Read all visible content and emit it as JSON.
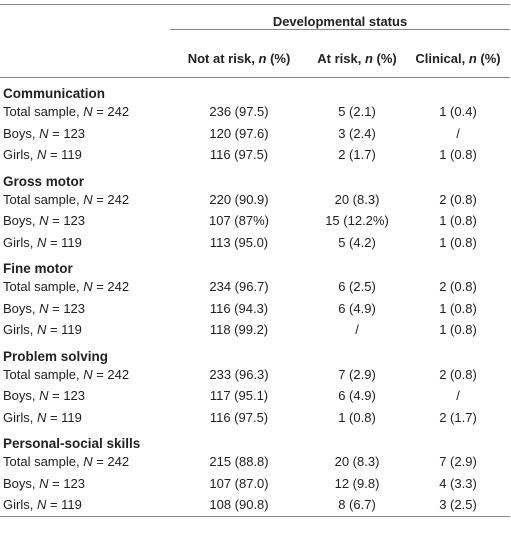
{
  "table": {
    "super_header": "Developmental status",
    "columns": [
      "Not at risk, n (%)",
      "At risk, n (%)",
      "Clinical, n (%)"
    ],
    "sections": [
      {
        "title": "Communication",
        "rows": [
          {
            "label": "Total sample, N = 242",
            "values": [
              "236 (97.5)",
              "5 (2.1)",
              "1 (0.4)"
            ]
          },
          {
            "label": "Boys, N = 123",
            "values": [
              "120 (97.6)",
              "3 (2.4)",
              "/"
            ]
          },
          {
            "label": "Girls, N = 119",
            "values": [
              "116 (97.5)",
              "2 (1.7)",
              "1 (0.8)"
            ]
          }
        ]
      },
      {
        "title": "Gross motor",
        "rows": [
          {
            "label": "Total sample, N = 242",
            "values": [
              "220 (90.9)",
              "20 (8.3)",
              "2 (0.8)"
            ]
          },
          {
            "label": "Boys, N = 123",
            "values": [
              "107 (87%)",
              "15 (12.2%)",
              "1 (0.8)"
            ]
          },
          {
            "label": "Girls, N = 119",
            "values": [
              "113 (95.0)",
              "5 (4.2)",
              "1 (0.8)"
            ]
          }
        ]
      },
      {
        "title": "Fine motor",
        "rows": [
          {
            "label": "Total sample, N = 242",
            "values": [
              "234 (96.7)",
              "6 (2.5)",
              "2 (0.8)"
            ]
          },
          {
            "label": "Boys, N = 123",
            "values": [
              "116 (94.3)",
              "6 (4.9)",
              "1 (0.8)"
            ]
          },
          {
            "label": "Girls, N = 119",
            "values": [
              "118 (99.2)",
              "/",
              "1 (0.8)"
            ]
          }
        ]
      },
      {
        "title": "Problem solving",
        "rows": [
          {
            "label": "Total sample, N = 242",
            "values": [
              "233 (96.3)",
              "7 (2.9)",
              "2 (0.8)"
            ]
          },
          {
            "label": "Boys, N = 123",
            "values": [
              "117 (95.1)",
              "6 (4.9)",
              "/"
            ]
          },
          {
            "label": "Girls, N = 119",
            "values": [
              "116 (97.5)",
              "1 (0.8)",
              "2 (1.7)"
            ]
          }
        ]
      },
      {
        "title": "Personal-social skills",
        "rows": [
          {
            "label": "Total sample, N = 242",
            "values": [
              "215 (88.8)",
              "20 (8.3)",
              "7 (2.9)"
            ]
          },
          {
            "label": "Boys, N = 123",
            "values": [
              "107 (87.0)",
              "12 (9.8)",
              "4 (3.3)"
            ]
          },
          {
            "label": "Girls, N = 119",
            "values": [
              "108 (90.8)",
              "8 (6.7)",
              "3 (2.5)"
            ]
          }
        ]
      }
    ]
  }
}
